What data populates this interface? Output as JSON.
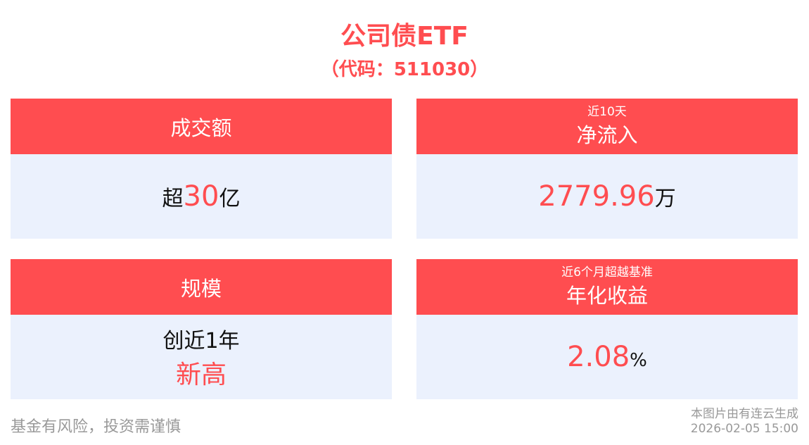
{
  "header": {
    "title": "公司债ETF",
    "code": "（代码：511030）"
  },
  "cards": [
    {
      "label": "成交额",
      "value_prefix": "超",
      "value": "30",
      "value_suffix": "亿"
    },
    {
      "sublabel": "近10天",
      "label": "净流入",
      "value": "2779.96",
      "value_suffix": "万"
    },
    {
      "label": "规模",
      "line1": "创近1年",
      "value": "新高"
    },
    {
      "sublabel": "近6个月超越基准",
      "label": "年化收益",
      "value": "2.08",
      "value_suffix": "%"
    }
  ],
  "footer": {
    "disclaimer": "基金有风险，投资需谨慎",
    "source": "本图片由有连云生成",
    "timestamp": "2026-02-05 15:00"
  },
  "colors": {
    "accent": "#ff4d50",
    "card_bg": "#ebf1fd"
  }
}
